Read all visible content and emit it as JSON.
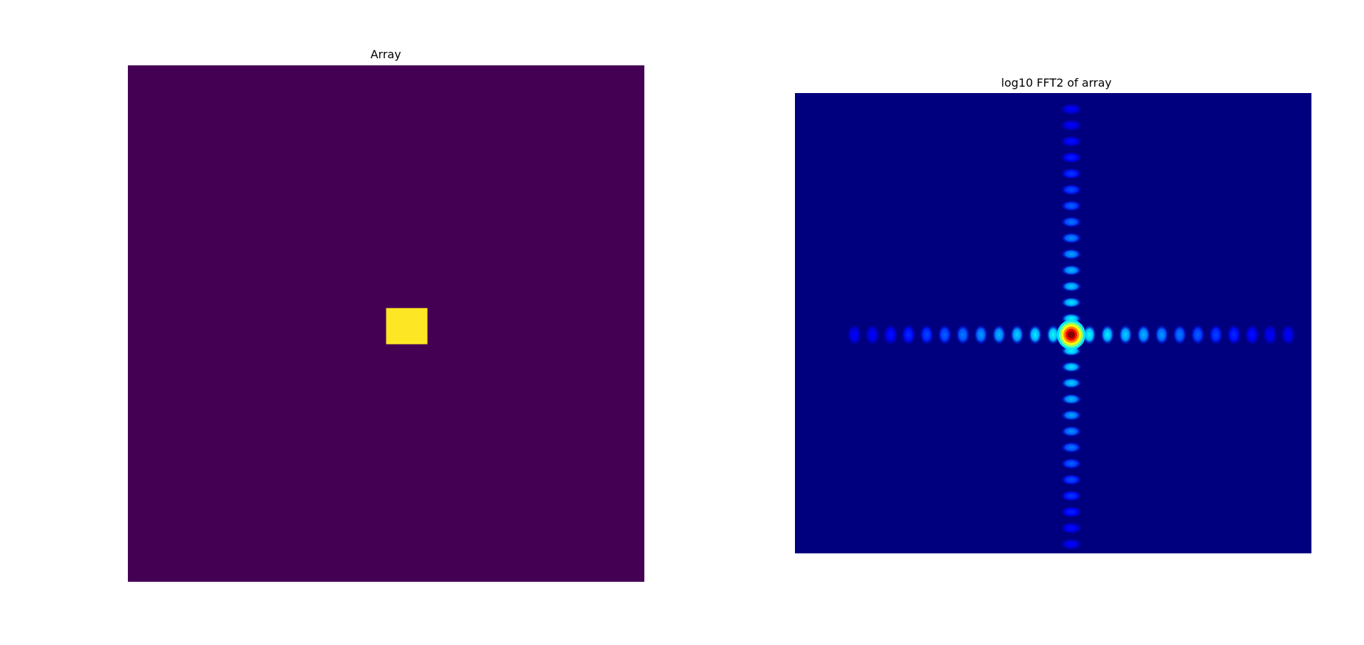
{
  "chart_data": [
    {
      "type": "heatmap",
      "title": "Array",
      "colormap": "viridis",
      "axes_visible": false,
      "background_color": "#440154",
      "highlight_color": "#fde725",
      "grid": false,
      "description_of_values": "zero-valued array with a single rectangular block of ones",
      "array_shape": [
        100,
        100
      ],
      "block": {
        "row_start": 47,
        "row_end": 54,
        "col_start": 50,
        "col_end": 58,
        "value": 1
      },
      "vmin": 0,
      "vmax": 1
    },
    {
      "type": "heatmap",
      "title": "log10 FFT2 of array",
      "colormap": "jet",
      "axes_visible": false,
      "background_color": "#00007f",
      "grid": false,
      "array_shape": [
        100,
        100
      ],
      "peak": {
        "row": 52,
        "col": 53
      },
      "lobe_spacing_cols": 3.5,
      "lobe_spacing_rows": 3.5
    }
  ]
}
